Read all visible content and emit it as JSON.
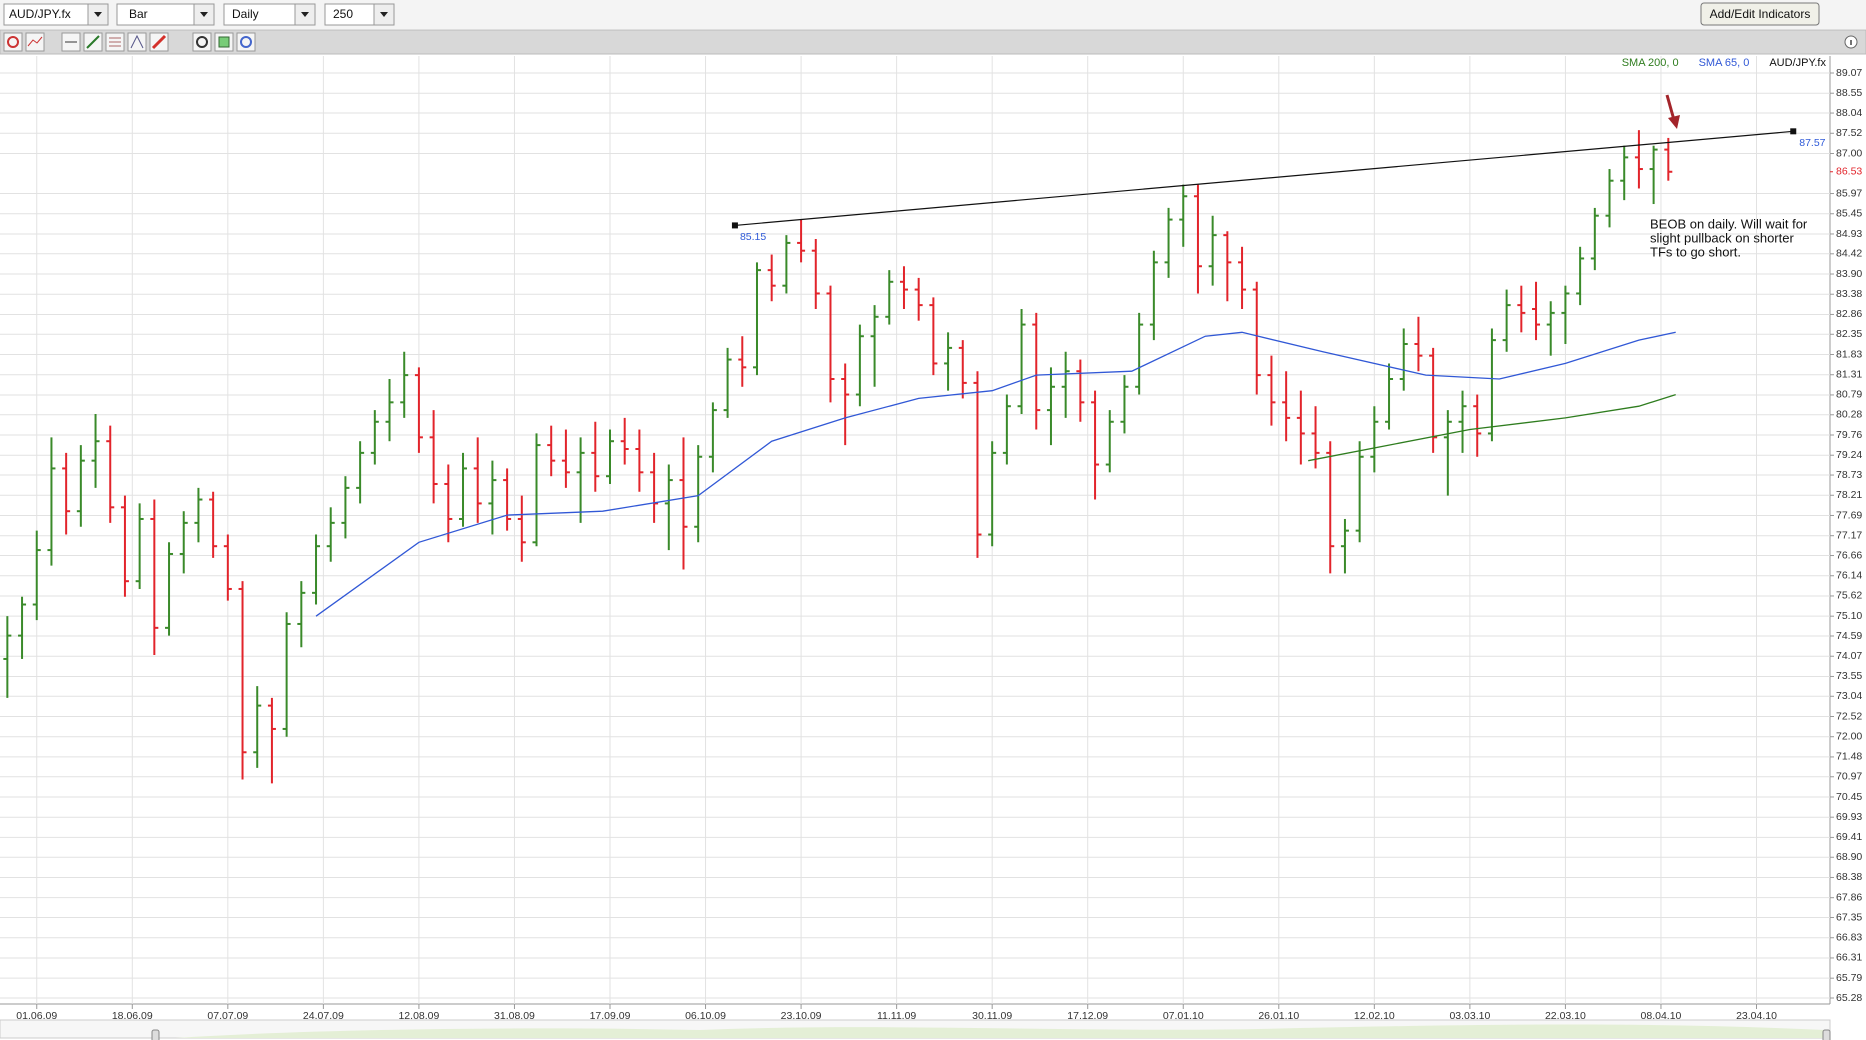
{
  "toolbar": {
    "symbol": "AUD/JPY.fx",
    "chart_type": "Bar",
    "period": "Daily",
    "bars": "250",
    "indicators_button": "Add/Edit Indicators"
  },
  "chart_data": {
    "type": "ohlc",
    "xlim": [
      -1,
      248
    ],
    "xticks": [
      {
        "value": 4,
        "label": "01.06.09"
      },
      {
        "value": 17,
        "label": "18.06.09"
      },
      {
        "value": 30,
        "label": "07.07.09"
      },
      {
        "value": 43,
        "label": "24.07.09"
      },
      {
        "value": 56,
        "label": "12.08.09"
      },
      {
        "value": 69,
        "label": "31.08.09"
      },
      {
        "value": 82,
        "label": "17.09.09"
      },
      {
        "value": 95,
        "label": "06.10.09"
      },
      {
        "value": 108,
        "label": "23.10.09"
      },
      {
        "value": 121,
        "label": "11.11.09"
      },
      {
        "value": 134,
        "label": "30.11.09"
      },
      {
        "value": 147,
        "label": "17.12.09"
      },
      {
        "value": 160,
        "label": "07.01.10"
      },
      {
        "value": 173,
        "label": "26.01.10"
      },
      {
        "value": 186,
        "label": "12.02.10"
      },
      {
        "value": 199,
        "label": "03.03.10"
      },
      {
        "value": 212,
        "label": "22.03.10"
      },
      {
        "value": 225,
        "label": "08.04.10"
      },
      {
        "value": 238,
        "label": "23.04.10"
      }
    ],
    "ylim": [
      65.28,
      89.07
    ],
    "yticks": [
      89.07,
      88.55,
      88.04,
      87.52,
      {
        "value": 87,
        "label": "87.00"
      },
      85.97,
      85.45,
      84.93,
      84.42,
      {
        "value": 83.9,
        "label": "83.90"
      },
      83.38,
      82.86,
      82.35,
      81.83,
      81.31,
      80.79,
      80.28,
      79.76,
      79.24,
      78.73,
      78.21,
      77.69,
      77.17,
      76.66,
      76.14,
      75.62,
      {
        "value": 75.1,
        "label": "75.10"
      },
      74.59,
      74.07,
      73.55,
      73.04,
      72.52,
      {
        "value": 72,
        "label": "72.00"
      },
      71.48,
      70.97,
      70.45,
      69.93,
      69.41,
      {
        "value": 68.9,
        "label": "68.90"
      },
      68.38,
      67.86,
      67.35,
      66.83,
      66.31,
      65.79,
      65.28
    ],
    "grid": true,
    "series": [
      {
        "name": "AUD/JPY.fx",
        "type": "ohlc",
        "up_color": "#3a8a2a",
        "down_color": "#e2242b",
        "x": [
          0,
          2,
          4,
          6,
          8,
          10,
          12,
          14,
          16,
          18,
          20,
          22,
          24,
          26,
          28,
          30,
          32,
          34,
          36,
          38,
          40,
          42,
          44,
          46,
          48,
          50,
          52,
          54,
          56,
          58,
          60,
          62,
          64,
          66,
          68,
          70,
          72,
          74,
          76,
          78,
          80,
          82,
          84,
          86,
          88,
          90,
          92,
          94,
          96,
          98,
          100,
          102,
          104,
          106,
          108,
          110,
          112,
          114,
          116,
          118,
          120,
          122,
          124,
          126,
          128,
          130,
          132,
          134,
          136,
          138,
          140,
          142,
          144,
          146,
          148,
          150,
          152,
          154,
          156,
          158,
          160,
          162,
          164,
          166,
          168,
          170,
          172,
          174,
          176,
          178,
          180,
          182,
          184,
          186,
          188,
          190,
          192,
          194,
          196,
          198,
          200,
          202,
          204,
          206,
          208,
          210,
          212,
          214,
          216,
          218,
          220,
          222,
          224,
          226
        ],
        "open": [
          74.0,
          74.6,
          75.4,
          76.8,
          78.9,
          77.8,
          79.1,
          79.6,
          77.9,
          76.0,
          77.6,
          74.8,
          76.7,
          77.5,
          78.1,
          76.9,
          75.8,
          71.6,
          72.8,
          72.2,
          74.9,
          75.7,
          76.9,
          77.5,
          78.4,
          79.3,
          80.1,
          80.6,
          81.3,
          79.7,
          78.5,
          77.6,
          78.9,
          78.0,
          78.6,
          77.6,
          77.0,
          79.5,
          79.1,
          78.8,
          79.3,
          78.7,
          79.6,
          79.4,
          78.8,
          78.0,
          78.6,
          77.4,
          79.2,
          80.4,
          81.7,
          81.5,
          84.0,
          83.6,
          84.7,
          84.5,
          83.4,
          81.2,
          80.8,
          82.3,
          82.8,
          83.7,
          83.5,
          83.1,
          81.6,
          82.0,
          81.1,
          77.2,
          79.3,
          80.5,
          82.6,
          80.4,
          81.0,
          81.4,
          80.6,
          79.0,
          80.1,
          81.0,
          82.6,
          84.2,
          85.3,
          85.9,
          84.1,
          84.9,
          84.2,
          83.5,
          81.3,
          80.6,
          80.2,
          79.8,
          79.3,
          76.9,
          77.3,
          79.2,
          80.1,
          81.2,
          82.1,
          81.8,
          79.7,
          80.1,
          80.5,
          79.8,
          82.2,
          83.1,
          83.0,
          82.6,
          82.9,
          83.4,
          84.3,
          85.4,
          86.3,
          86.9,
          86.6,
          87.1
        ],
        "high": [
          75.1,
          75.6,
          77.3,
          79.7,
          79.3,
          79.5,
          80.3,
          80.0,
          78.2,
          78.0,
          78.1,
          77.0,
          77.8,
          78.4,
          78.3,
          77.2,
          76.0,
          73.3,
          73.0,
          75.2,
          76.0,
          77.2,
          77.9,
          78.7,
          79.6,
          80.4,
          81.2,
          81.9,
          81.5,
          80.4,
          79.0,
          79.3,
          79.7,
          79.1,
          78.9,
          78.2,
          79.8,
          80.0,
          79.9,
          79.7,
          80.1,
          79.9,
          80.2,
          79.9,
          79.3,
          79.0,
          79.7,
          79.5,
          80.6,
          82.0,
          82.3,
          84.2,
          84.4,
          84.9,
          85.3,
          84.8,
          83.6,
          81.6,
          82.6,
          83.1,
          84.0,
          84.1,
          83.8,
          83.3,
          82.4,
          82.2,
          81.4,
          79.6,
          80.8,
          83.0,
          82.9,
          81.5,
          81.9,
          81.7,
          80.9,
          80.4,
          81.3,
          82.9,
          84.5,
          85.6,
          86.2,
          86.2,
          85.4,
          85.0,
          84.6,
          83.7,
          81.8,
          81.4,
          80.9,
          80.5,
          79.6,
          77.6,
          79.6,
          80.5,
          81.6,
          82.5,
          82.8,
          82.0,
          80.4,
          80.9,
          80.8,
          82.5,
          83.5,
          83.6,
          83.7,
          83.2,
          83.6,
          84.6,
          85.6,
          86.6,
          87.2,
          87.6,
          87.2,
          87.4
        ],
        "low": [
          73.0,
          74.0,
          75.0,
          76.4,
          77.2,
          77.4,
          78.4,
          77.5,
          75.6,
          75.8,
          74.1,
          74.6,
          76.2,
          77.0,
          76.6,
          75.5,
          70.9,
          71.2,
          70.8,
          72.0,
          74.3,
          75.4,
          76.5,
          77.1,
          78.0,
          79.0,
          79.6,
          80.2,
          79.3,
          78.0,
          77.0,
          77.4,
          77.5,
          77.2,
          77.3,
          76.5,
          76.9,
          78.7,
          78.4,
          77.5,
          78.3,
          78.5,
          79.0,
          78.3,
          77.5,
          76.8,
          76.3,
          77.0,
          78.8,
          80.2,
          81.0,
          81.3,
          83.2,
          83.4,
          84.2,
          83.0,
          80.6,
          79.5,
          80.5,
          81.0,
          82.6,
          83.0,
          82.7,
          81.3,
          80.9,
          80.7,
          76.6,
          76.9,
          79.0,
          80.3,
          79.9,
          79.5,
          80.2,
          80.1,
          78.1,
          78.8,
          79.8,
          80.8,
          82.2,
          83.8,
          84.6,
          83.4,
          83.6,
          83.2,
          83.0,
          80.8,
          80.0,
          79.6,
          79.0,
          78.9,
          76.2,
          76.2,
          77.0,
          78.8,
          79.9,
          80.9,
          81.4,
          79.3,
          78.2,
          79.3,
          79.2,
          79.6,
          81.9,
          82.4,
          82.2,
          81.8,
          82.1,
          83.1,
          84.0,
          85.1,
          85.8,
          86.1,
          85.7,
          86.3
        ],
        "close": [
          74.6,
          75.4,
          76.8,
          78.9,
          77.8,
          79.1,
          79.6,
          77.9,
          76.0,
          77.6,
          74.8,
          76.7,
          77.5,
          78.1,
          76.9,
          75.8,
          71.6,
          72.8,
          72.2,
          74.9,
          75.7,
          76.9,
          77.5,
          78.4,
          79.3,
          80.1,
          80.6,
          81.3,
          79.7,
          78.5,
          77.6,
          78.9,
          78.0,
          78.6,
          77.6,
          77.0,
          79.5,
          79.1,
          78.8,
          79.3,
          78.7,
          79.6,
          79.4,
          78.8,
          78.0,
          78.6,
          77.4,
          79.2,
          80.4,
          81.7,
          81.5,
          84.0,
          83.6,
          84.7,
          84.5,
          83.4,
          81.2,
          80.8,
          82.3,
          82.8,
          83.7,
          83.5,
          83.1,
          81.6,
          82.0,
          81.1,
          77.2,
          79.3,
          80.5,
          82.6,
          80.4,
          81.0,
          81.4,
          80.6,
          79.0,
          80.1,
          81.0,
          82.6,
          84.2,
          85.3,
          85.9,
          84.1,
          84.9,
          84.2,
          83.5,
          81.3,
          80.6,
          80.2,
          79.8,
          79.3,
          76.9,
          77.3,
          79.2,
          80.1,
          81.2,
          82.1,
          81.8,
          79.7,
          80.1,
          80.5,
          79.8,
          82.2,
          83.1,
          82.9,
          82.6,
          82.9,
          83.4,
          84.3,
          85.4,
          86.3,
          86.9,
          86.6,
          87.1,
          86.53
        ]
      },
      {
        "name": "SMA 65, 0",
        "type": "line",
        "color": "#3158d6",
        "x": [
          42,
          56,
          68,
          81,
          94,
          104,
          114,
          124,
          134,
          140,
          153,
          163,
          168,
          179,
          193,
          203,
          212,
          222,
          227
        ],
        "values": [
          75.1,
          77.0,
          77.7,
          77.8,
          78.2,
          79.6,
          80.2,
          80.7,
          80.9,
          81.3,
          81.4,
          82.3,
          82.4,
          81.9,
          81.3,
          81.2,
          81.6,
          82.2,
          82.4
        ]
      },
      {
        "name": "SMA 200, 0",
        "type": "line",
        "color": "#2f7d1f",
        "x": [
          177,
          188,
          199,
          212,
          222,
          227
        ],
        "values": [
          79.1,
          79.5,
          79.9,
          80.2,
          80.5,
          80.8
        ]
      }
    ],
    "trendline": {
      "color": "#111111",
      "label_color": "#2f5ad8",
      "x": [
        99,
        243
      ],
      "values": [
        85.15,
        87.57
      ]
    },
    "last_price": 86.53,
    "last_price_color": "#e2242b",
    "annotation": [
      "BEOB on daily. Will wait for",
      "slight pullback on shorter",
      "TFs to go short."
    ]
  }
}
